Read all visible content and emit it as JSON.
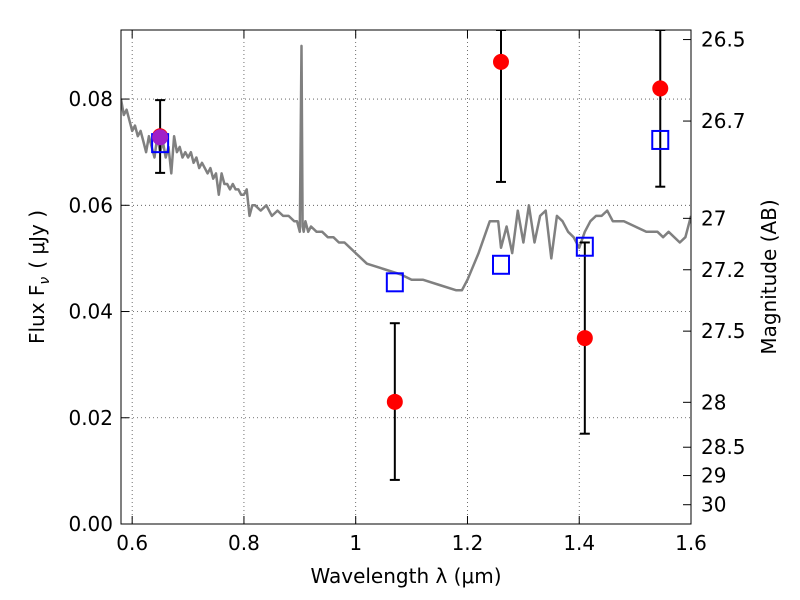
{
  "chart_data": {
    "type": "scatter",
    "xlabel": "Wavelength  λ (μm)",
    "ylabel": "Flux  F",
    "ylabel_sub": "ν",
    "ylabel_unit": "( μJy )",
    "y2label": "Magnitude (AB)",
    "xlim": [
      0.58,
      1.6
    ],
    "ylim": [
      0.0,
      0.093
    ],
    "grid": true,
    "x_ticks": [
      {
        "value": 0.6,
        "label": "0.6"
      },
      {
        "value": 0.8,
        "label": "0.8"
      },
      {
        "value": 1.0,
        "label": "1"
      },
      {
        "value": 1.2,
        "label": "1.2"
      },
      {
        "value": 1.4,
        "label": "1.4"
      },
      {
        "value": 1.6,
        "label": "1.6"
      }
    ],
    "y_ticks": [
      {
        "value": 0.0,
        "label": "0.00"
      },
      {
        "value": 0.02,
        "label": "0.02"
      },
      {
        "value": 0.04,
        "label": "0.04"
      },
      {
        "value": 0.06,
        "label": "0.06"
      },
      {
        "value": 0.08,
        "label": "0.08"
      }
    ],
    "y2_ticks": [
      {
        "value": 26.5,
        "label": "26.5"
      },
      {
        "value": 26.7,
        "label": "26.7"
      },
      {
        "value": 27.0,
        "label": "27"
      },
      {
        "value": 27.2,
        "label": "27.2"
      },
      {
        "value": 27.5,
        "label": "27.5"
      },
      {
        "value": 28.0,
        "label": "28"
      },
      {
        "value": 28.5,
        "label": "28.5"
      },
      {
        "value": 29.0,
        "label": "29"
      },
      {
        "value": 30.0,
        "label": "30"
      }
    ],
    "series": [
      {
        "kind": "line",
        "color": "#808080",
        "x": [
          0.58,
          0.585,
          0.59,
          0.595,
          0.6,
          0.605,
          0.61,
          0.615,
          0.62,
          0.625,
          0.63,
          0.635,
          0.64,
          0.645,
          0.65,
          0.655,
          0.66,
          0.665,
          0.67,
          0.675,
          0.68,
          0.685,
          0.69,
          0.695,
          0.7,
          0.705,
          0.71,
          0.715,
          0.72,
          0.725,
          0.73,
          0.735,
          0.74,
          0.745,
          0.75,
          0.755,
          0.76,
          0.765,
          0.77,
          0.775,
          0.78,
          0.785,
          0.79,
          0.795,
          0.8,
          0.805,
          0.81,
          0.815,
          0.82,
          0.83,
          0.84,
          0.85,
          0.86,
          0.87,
          0.88,
          0.89,
          0.895,
          0.9,
          0.903,
          0.905,
          0.907,
          0.91,
          0.915,
          0.92,
          0.93,
          0.94,
          0.95,
          0.96,
          0.97,
          0.98,
          0.99,
          1.0,
          1.02,
          1.05,
          1.08,
          1.1,
          1.12,
          1.15,
          1.18,
          1.19,
          1.2,
          1.22,
          1.24,
          1.255,
          1.26,
          1.27,
          1.28,
          1.29,
          1.3,
          1.31,
          1.32,
          1.33,
          1.34,
          1.35,
          1.36,
          1.37,
          1.38,
          1.39,
          1.4,
          1.41,
          1.42,
          1.43,
          1.44,
          1.45,
          1.46,
          1.48,
          1.5,
          1.52,
          1.54,
          1.55,
          1.56,
          1.58,
          1.59,
          1.6
        ],
        "y": [
          0.08,
          0.077,
          0.078,
          0.076,
          0.074,
          0.075,
          0.073,
          0.074,
          0.072,
          0.07,
          0.073,
          0.071,
          0.069,
          0.073,
          0.07,
          0.072,
          0.069,
          0.071,
          0.066,
          0.073,
          0.07,
          0.071,
          0.069,
          0.07,
          0.069,
          0.07,
          0.068,
          0.069,
          0.067,
          0.068,
          0.067,
          0.066,
          0.067,
          0.065,
          0.066,
          0.062,
          0.066,
          0.064,
          0.064,
          0.063,
          0.064,
          0.063,
          0.063,
          0.062,
          0.062,
          0.063,
          0.058,
          0.06,
          0.06,
          0.059,
          0.06,
          0.058,
          0.059,
          0.058,
          0.058,
          0.057,
          0.057,
          0.055,
          0.09,
          0.056,
          0.055,
          0.057,
          0.055,
          0.056,
          0.055,
          0.055,
          0.054,
          0.054,
          0.053,
          0.053,
          0.052,
          0.051,
          0.049,
          0.048,
          0.047,
          0.046,
          0.046,
          0.045,
          0.044,
          0.044,
          0.046,
          0.051,
          0.057,
          0.057,
          0.052,
          0.056,
          0.051,
          0.059,
          0.053,
          0.06,
          0.053,
          0.058,
          0.059,
          0.05,
          0.058,
          0.057,
          0.055,
          0.054,
          0.052,
          0.055,
          0.057,
          0.058,
          0.058,
          0.059,
          0.057,
          0.057,
          0.056,
          0.055,
          0.055,
          0.054,
          0.055,
          0.053,
          0.054,
          0.058
        ]
      },
      {
        "kind": "points",
        "marker": "circle",
        "color": "#ff0000",
        "points": [
          {
            "x": 0.65,
            "y": 0.073,
            "err_lo": 0.0661,
            "err_hi": 0.0798
          },
          {
            "x": 1.07,
            "y": 0.023,
            "err_lo": 0.0083,
            "err_hi": 0.0378
          },
          {
            "x": 1.26,
            "y": 0.087,
            "err_lo": 0.0644,
            "err_hi": 0.093
          },
          {
            "x": 1.41,
            "y": 0.035,
            "err_lo": 0.017,
            "err_hi": 0.053
          },
          {
            "x": 1.545,
            "y": 0.082,
            "err_lo": 0.0635,
            "err_hi": 0.093
          }
        ]
      },
      {
        "kind": "points",
        "marker": "square",
        "color": "#0000ff",
        "points": [
          {
            "x": 0.65,
            "y": 0.0717
          },
          {
            "x": 1.07,
            "y": 0.0455
          },
          {
            "x": 1.26,
            "y": 0.0488
          },
          {
            "x": 1.41,
            "y": 0.0522
          },
          {
            "x": 1.545,
            "y": 0.0723
          }
        ]
      }
    ],
    "overlap_marker": {
      "x": 0.65,
      "y": 0.0728,
      "color": "#a020c8"
    }
  }
}
